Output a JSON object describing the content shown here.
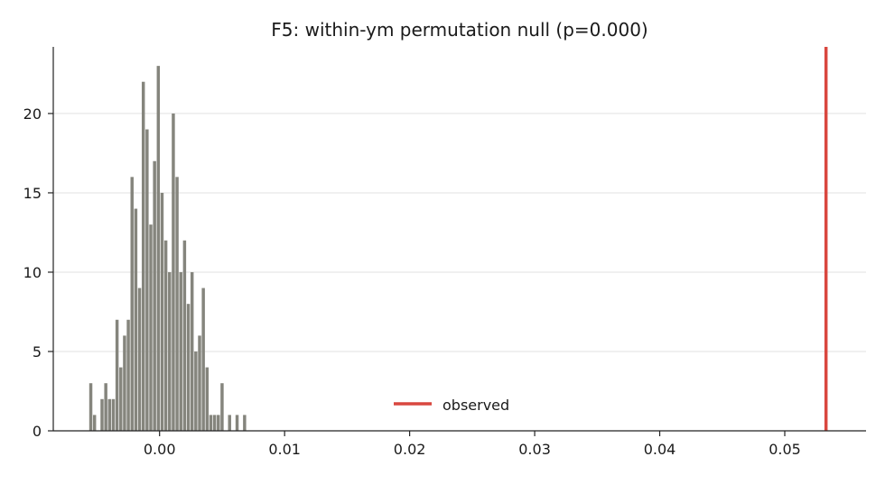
{
  "chart_data": {
    "type": "bar",
    "title": "F5: within-ym permutation null (p=0.000)",
    "xlabel": "",
    "ylabel": "",
    "xlim": [
      -0.0085,
      0.0565
    ],
    "ylim": [
      0,
      24.2
    ],
    "grid": {
      "y": true,
      "x": false
    },
    "legend": {
      "placement": "lower-center",
      "entries": [
        "observed"
      ]
    },
    "colors": {
      "bars": "#85857d",
      "observed": "#d9473f",
      "grid": "#e2e2e2",
      "axis": "#222222"
    },
    "bin_width": 0.00025,
    "bins": [
      {
        "x": -0.0055,
        "count": 3
      },
      {
        "x": -0.0052,
        "count": 1
      },
      {
        "x": -0.0046,
        "count": 2
      },
      {
        "x": -0.0043,
        "count": 3
      },
      {
        "x": -0.004,
        "count": 2
      },
      {
        "x": -0.0037,
        "count": 2
      },
      {
        "x": -0.0034,
        "count": 7
      },
      {
        "x": -0.0031,
        "count": 4
      },
      {
        "x": -0.0028,
        "count": 6
      },
      {
        "x": -0.0025,
        "count": 7
      },
      {
        "x": -0.0022,
        "count": 16
      },
      {
        "x": -0.0019,
        "count": 14
      },
      {
        "x": -0.0016,
        "count": 9
      },
      {
        "x": -0.0013,
        "count": 22
      },
      {
        "x": -0.001,
        "count": 19
      },
      {
        "x": -0.0007,
        "count": 13
      },
      {
        "x": -0.0004,
        "count": 17
      },
      {
        "x": -0.0001,
        "count": 23
      },
      {
        "x": 0.0002,
        "count": 15
      },
      {
        "x": 0.0005,
        "count": 12
      },
      {
        "x": 0.0008,
        "count": 10
      },
      {
        "x": 0.0011,
        "count": 20
      },
      {
        "x": 0.0014,
        "count": 16
      },
      {
        "x": 0.0017,
        "count": 10
      },
      {
        "x": 0.002,
        "count": 12
      },
      {
        "x": 0.0023,
        "count": 8
      },
      {
        "x": 0.0026,
        "count": 10
      },
      {
        "x": 0.0029,
        "count": 5
      },
      {
        "x": 0.0032,
        "count": 6
      },
      {
        "x": 0.0035,
        "count": 9
      },
      {
        "x": 0.0038,
        "count": 4
      },
      {
        "x": 0.0041,
        "count": 1
      },
      {
        "x": 0.0044,
        "count": 1
      },
      {
        "x": 0.0047,
        "count": 1
      },
      {
        "x": 0.005,
        "count": 3
      },
      {
        "x": 0.0056,
        "count": 1
      },
      {
        "x": 0.0062,
        "count": 1
      },
      {
        "x": 0.0068,
        "count": 1
      }
    ],
    "observed": 0.0533,
    "x_ticks": [
      {
        "value": 0.0,
        "label": "0.00"
      },
      {
        "value": 0.01,
        "label": "0.01"
      },
      {
        "value": 0.02,
        "label": "0.02"
      },
      {
        "value": 0.03,
        "label": "0.03"
      },
      {
        "value": 0.04,
        "label": "0.04"
      },
      {
        "value": 0.05,
        "label": "0.05"
      }
    ],
    "y_ticks": [
      {
        "value": 0,
        "label": "0"
      },
      {
        "value": 5,
        "label": "5"
      },
      {
        "value": 10,
        "label": "10"
      },
      {
        "value": 15,
        "label": "15"
      },
      {
        "value": 20,
        "label": "20"
      }
    ]
  }
}
